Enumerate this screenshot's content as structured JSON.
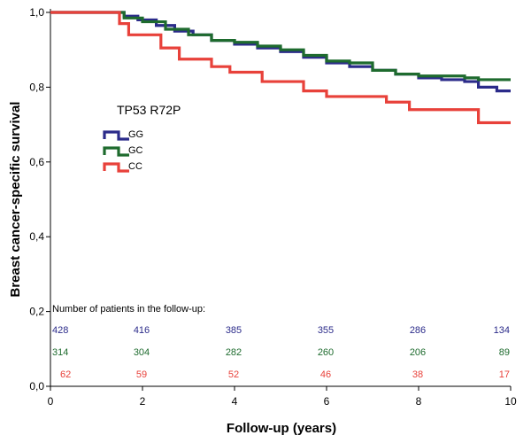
{
  "chart_data": {
    "type": "line",
    "subtype": "kaplan-meier step",
    "xlabel": "Follow-up (years)",
    "ylabel": "Breast cancer-specific survival",
    "xlim": [
      0,
      10
    ],
    "ylim": [
      0,
      1
    ],
    "x_ticks": [
      0,
      2,
      4,
      6,
      8,
      10
    ],
    "x_tick_labels": [
      "0",
      "2",
      "4",
      "6",
      "8",
      "10"
    ],
    "y_ticks": [
      0,
      0.2,
      0.4,
      0.6,
      0.8,
      1.0
    ],
    "y_tick_labels": [
      "0,0",
      "0,2",
      "0,4",
      "0,6",
      "0,8",
      "1,0"
    ],
    "legend_title": "TP53 R72P",
    "legend_placement": "left-middle",
    "series": [
      {
        "name": "GG",
        "color": "#2b2b8a",
        "points": [
          [
            0,
            1.0
          ],
          [
            1.4,
            1.0
          ],
          [
            1.6,
            0.99
          ],
          [
            1.9,
            0.98
          ],
          [
            2.3,
            0.965
          ],
          [
            2.7,
            0.95
          ],
          [
            3.1,
            0.94
          ],
          [
            3.5,
            0.925
          ],
          [
            4.0,
            0.915
          ],
          [
            4.5,
            0.905
          ],
          [
            5.0,
            0.895
          ],
          [
            5.5,
            0.88
          ],
          [
            6.0,
            0.865
          ],
          [
            6.5,
            0.855
          ],
          [
            7.0,
            0.845
          ],
          [
            7.5,
            0.835
          ],
          [
            8.0,
            0.825
          ],
          [
            8.5,
            0.82
          ],
          [
            9.0,
            0.815
          ],
          [
            9.3,
            0.8
          ],
          [
            9.7,
            0.79
          ],
          [
            10.0,
            0.79
          ]
        ]
      },
      {
        "name": "GC",
        "color": "#1e6b2e",
        "points": [
          [
            0,
            1.0
          ],
          [
            1.4,
            1.0
          ],
          [
            1.6,
            0.985
          ],
          [
            2.0,
            0.975
          ],
          [
            2.5,
            0.955
          ],
          [
            3.0,
            0.94
          ],
          [
            3.5,
            0.925
          ],
          [
            4.0,
            0.92
          ],
          [
            4.5,
            0.91
          ],
          [
            5.0,
            0.9
          ],
          [
            5.5,
            0.885
          ],
          [
            6.0,
            0.87
          ],
          [
            6.5,
            0.865
          ],
          [
            7.0,
            0.845
          ],
          [
            7.5,
            0.835
          ],
          [
            8.0,
            0.83
          ],
          [
            8.5,
            0.83
          ],
          [
            9.0,
            0.825
          ],
          [
            9.3,
            0.82
          ],
          [
            10.0,
            0.82
          ]
        ]
      },
      {
        "name": "CC",
        "color": "#e8413a",
        "points": [
          [
            0,
            1.0
          ],
          [
            1.4,
            1.0
          ],
          [
            1.5,
            0.97
          ],
          [
            1.7,
            0.94
          ],
          [
            2.4,
            0.905
          ],
          [
            2.8,
            0.875
          ],
          [
            3.5,
            0.855
          ],
          [
            3.9,
            0.84
          ],
          [
            4.6,
            0.815
          ],
          [
            5.5,
            0.79
          ],
          [
            6.0,
            0.775
          ],
          [
            7.3,
            0.76
          ],
          [
            7.8,
            0.74
          ],
          [
            9.3,
            0.705
          ],
          [
            10.0,
            0.705
          ]
        ]
      }
    ],
    "risk_table": {
      "title": "Number of patients in the follow-up:",
      "at_years": [
        0,
        2,
        4,
        6,
        8,
        10
      ],
      "rows": [
        {
          "name": "GG",
          "color": "#2b2b8a",
          "values": [
            428,
            416,
            385,
            355,
            286,
            134
          ]
        },
        {
          "name": "GC",
          "color": "#1e6b2e",
          "values": [
            314,
            304,
            282,
            260,
            206,
            89
          ]
        },
        {
          "name": "CC",
          "color": "#e8413a",
          "values": [
            62,
            59,
            52,
            46,
            38,
            17
          ]
        }
      ]
    }
  }
}
